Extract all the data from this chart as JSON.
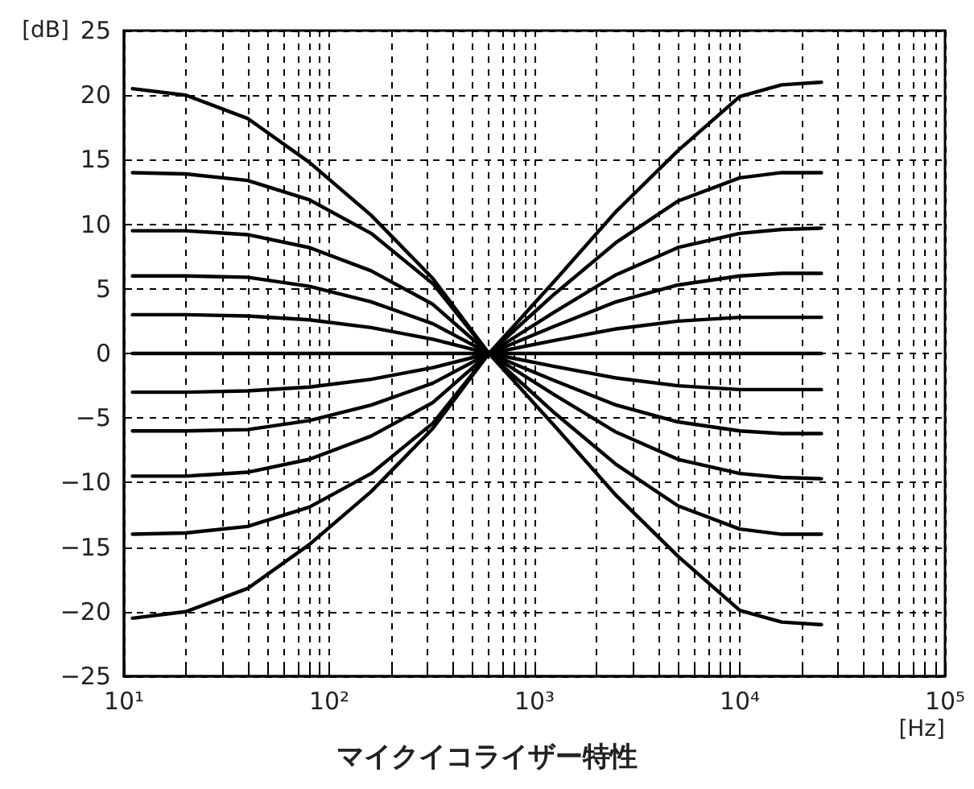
{
  "chart_data": {
    "type": "line",
    "title": "マイクイコライザー特性",
    "xlabel": "[Hz]",
    "ylabel": "[dB]",
    "log": "x",
    "grid": true,
    "marker": "none",
    "line_style": "solid",
    "x": [
      11,
      20,
      40,
      80,
      160,
      320,
      600,
      1250,
      2500,
      5000,
      10000,
      16000,
      25000
    ],
    "xlim": [
      10,
      100000
    ],
    "xticks": [
      {
        "value": 10,
        "label": "10¹"
      },
      {
        "value": 20,
        "label": null
      },
      {
        "value": 30,
        "label": null
      },
      {
        "value": 40,
        "label": null
      },
      {
        "value": 50,
        "label": null
      },
      {
        "value": 60,
        "label": null
      },
      {
        "value": 70,
        "label": null
      },
      {
        "value": 80,
        "label": null
      },
      {
        "value": 90,
        "label": null
      },
      {
        "value": 100,
        "label": "10²"
      },
      {
        "value": 200,
        "label": null
      },
      {
        "value": 300,
        "label": null
      },
      {
        "value": 400,
        "label": null
      },
      {
        "value": 500,
        "label": null
      },
      {
        "value": 600,
        "label": null
      },
      {
        "value": 700,
        "label": null
      },
      {
        "value": 800,
        "label": null
      },
      {
        "value": 900,
        "label": null
      },
      {
        "value": 1000,
        "label": "10³"
      },
      {
        "value": 2000,
        "label": null
      },
      {
        "value": 3000,
        "label": null
      },
      {
        "value": 4000,
        "label": null
      },
      {
        "value": 5000,
        "label": null
      },
      {
        "value": 6000,
        "label": null
      },
      {
        "value": 7000,
        "label": null
      },
      {
        "value": 8000,
        "label": null
      },
      {
        "value": 9000,
        "label": null
      },
      {
        "value": 10000,
        "label": "10⁴"
      },
      {
        "value": 20000,
        "label": null
      },
      {
        "value": 30000,
        "label": null
      },
      {
        "value": 40000,
        "label": null
      },
      {
        "value": 50000,
        "label": null
      },
      {
        "value": 60000,
        "label": null
      },
      {
        "value": 70000,
        "label": null
      },
      {
        "value": 80000,
        "label": null
      },
      {
        "value": 90000,
        "label": null
      },
      {
        "value": 100000,
        "label": "10⁵"
      }
    ],
    "ylim": [
      -25,
      25
    ],
    "yticks": [
      {
        "value": -25,
        "label": "−25"
      },
      {
        "value": -20,
        "label": "−20"
      },
      {
        "value": -15,
        "label": "−15"
      },
      {
        "value": -10,
        "label": "−10"
      },
      {
        "value": -5,
        "label": "−5"
      },
      0,
      5,
      10,
      15,
      20,
      25
    ],
    "series": [
      {
        "color": "#000000",
        "values": [
          20.5,
          20.0,
          18.2,
          14.8,
          10.7,
          5.8,
          0,
          -5.6,
          -11,
          -15.7,
          -19.9,
          -20.8,
          -21
        ]
      },
      {
        "color": "#000000",
        "values": [
          14,
          13.9,
          13.4,
          11.9,
          9.3,
          5.4,
          0,
          -4.6,
          -8.6,
          -11.8,
          -13.6,
          -14,
          -14
        ]
      },
      {
        "color": "#000000",
        "values": [
          9.5,
          9.5,
          9.2,
          8.2,
          6.4,
          3.8,
          0,
          -3.2,
          -6.1,
          -8.2,
          -9.3,
          -9.6,
          -9.7
        ]
      },
      {
        "color": "#000000",
        "values": [
          6,
          6,
          5.9,
          5.2,
          4.0,
          2.3,
          0,
          -2.1,
          -4.0,
          -5.3,
          -6.0,
          -6.2,
          -6.2
        ]
      },
      {
        "color": "#000000",
        "values": [
          3,
          3,
          2.9,
          2.6,
          2.0,
          1.1,
          0,
          -1.0,
          -1.9,
          -2.5,
          -2.8,
          -2.8,
          -2.8
        ]
      },
      {
        "color": "#000000",
        "values": [
          0,
          0,
          0,
          0,
          0,
          0,
          0,
          0,
          0,
          0,
          0,
          0,
          0
        ]
      },
      {
        "color": "#000000",
        "values": [
          -3,
          -3,
          -2.9,
          -2.6,
          -2.0,
          -1.1,
          0,
          1.0,
          1.9,
          2.5,
          2.8,
          2.8,
          2.8
        ]
      },
      {
        "color": "#000000",
        "values": [
          -6,
          -6,
          -5.9,
          -5.2,
          -4.0,
          -2.3,
          0,
          2.1,
          4.0,
          5.3,
          6.0,
          6.2,
          6.2
        ]
      },
      {
        "color": "#000000",
        "values": [
          -9.5,
          -9.5,
          -9.2,
          -8.2,
          -6.4,
          -3.8,
          0,
          3.2,
          6.1,
          8.2,
          9.3,
          9.6,
          9.7
        ]
      },
      {
        "color": "#000000",
        "values": [
          -14,
          -13.9,
          -13.4,
          -11.9,
          -9.3,
          -5.4,
          0,
          4.6,
          8.6,
          11.8,
          13.6,
          14,
          14
        ]
      },
      {
        "color": "#000000",
        "values": [
          -20.5,
          -20.0,
          -18.2,
          -14.8,
          -10.7,
          -5.8,
          0,
          5.6,
          11,
          15.7,
          19.9,
          20.8,
          21
        ]
      }
    ]
  }
}
